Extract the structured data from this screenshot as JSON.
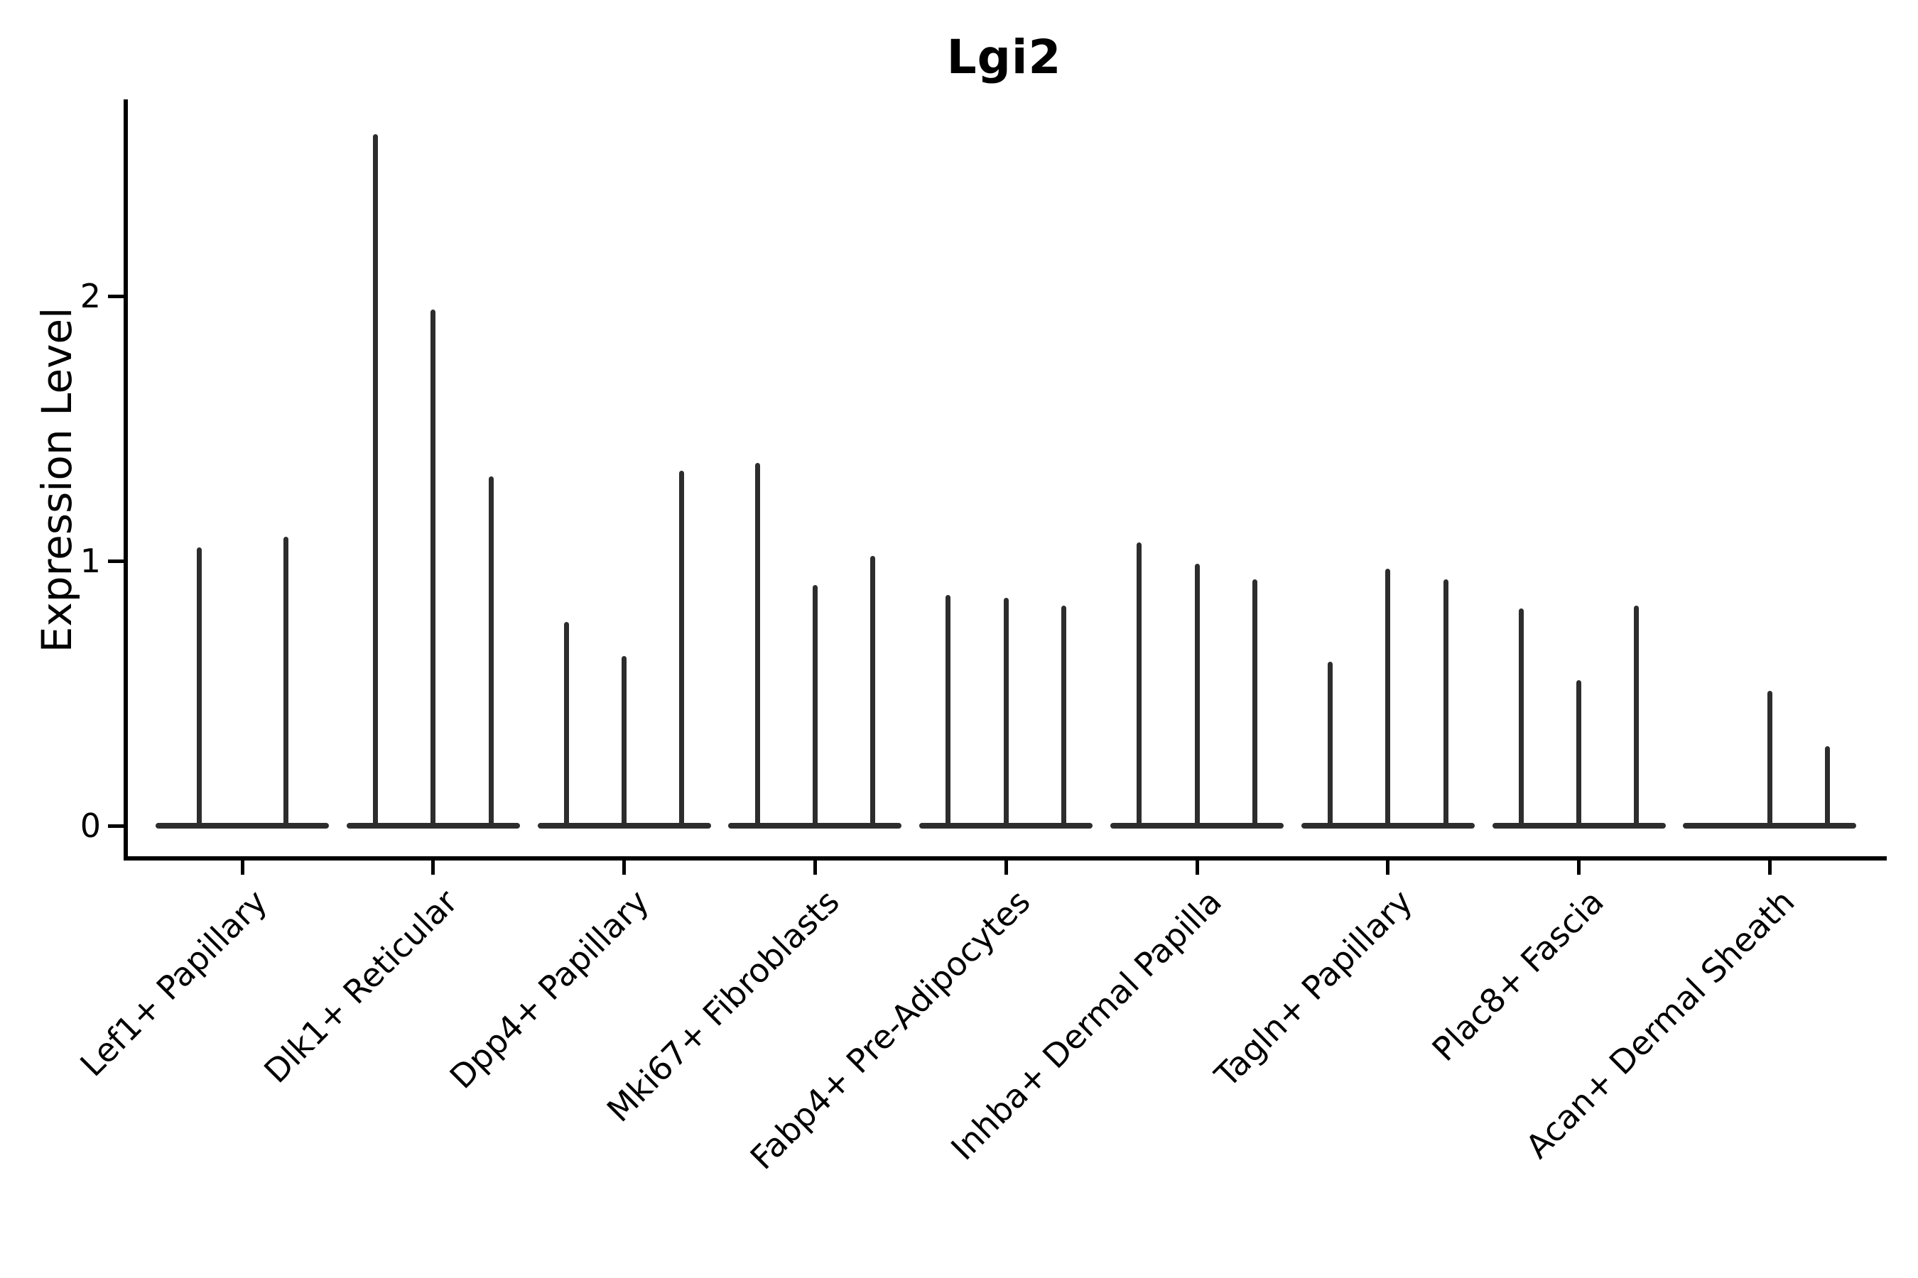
{
  "title": "Lgi2",
  "ylabel": "Expression Level",
  "colors": {
    "line": "#2d2d2d",
    "axis": "#000000",
    "background": "#ffffff"
  },
  "chart_data": {
    "type": "violin",
    "title": "Lgi2",
    "xlabel": "",
    "ylabel": "Expression Level",
    "ylim": [
      -0.13,
      2.74
    ],
    "yticks": [
      0,
      1,
      2
    ],
    "grid": false,
    "legend": false,
    "description": "Narrow spike-like violins; each category holds 2-3 violins whose flat bases merge at y=0; values are the peak expression level of each violin spike",
    "categories": [
      "Lef1+ Papillary",
      "Dlk1+ Reticular",
      "Dpp4+ Papillary",
      "Mki67+ Fibroblasts",
      "Fabp4+ Pre-Adipocytes",
      "Inhba+ Dermal Papilla",
      "Tagln+ Papillary",
      "Plac8+ Fascia",
      "Acan+ Dermal Sheath"
    ],
    "series": [
      {
        "category": "Lef1+ Papillary",
        "violin_peaks": [
          1.05,
          1.09
        ]
      },
      {
        "category": "Dlk1+ Reticular",
        "violin_peaks": [
          2.61,
          1.95,
          1.32
        ]
      },
      {
        "category": "Dpp4+ Papillary",
        "violin_peaks": [
          0.77,
          0.64,
          1.34
        ]
      },
      {
        "category": "Mki67+ Fibroblasts",
        "violin_peaks": [
          1.37,
          0.91,
          1.02
        ]
      },
      {
        "category": "Fabp4+ Pre-Adipocytes",
        "violin_peaks": [
          0.87,
          0.86,
          0.83
        ]
      },
      {
        "category": "Inhba+ Dermal Papilla",
        "violin_peaks": [
          1.07,
          0.99,
          0.93
        ]
      },
      {
        "category": "Tagln+ Papillary",
        "violin_peaks": [
          0.62,
          0.97,
          0.93
        ]
      },
      {
        "category": "Plac8+ Fascia",
        "violin_peaks": [
          0.82,
          0.55,
          0.83
        ]
      },
      {
        "category": "Acan+ Dermal Sheath",
        "violin_peaks": [
          0.0,
          0.51,
          0.3
        ]
      }
    ]
  }
}
